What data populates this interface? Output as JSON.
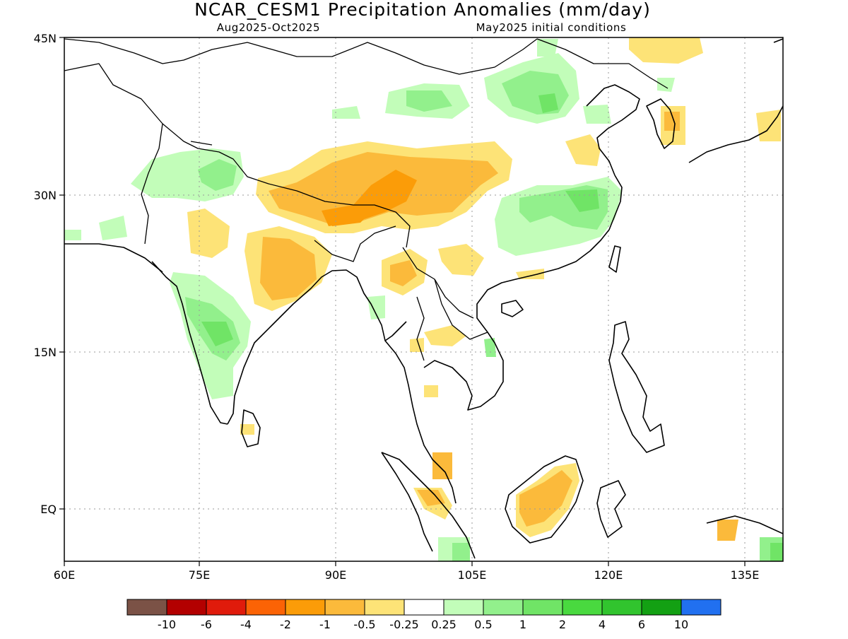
{
  "title": "NCAR_CESM1 Precipitation Anomalies (mm/day)",
  "period": "Aug2025-Oct2025",
  "initial_conditions": "May2025 initial conditions",
  "lat_labels": [
    "45N",
    "30N",
    "15N",
    "EQ"
  ],
  "lon_labels": [
    "60E",
    "75E",
    "90E",
    "105E",
    "120E",
    "135E"
  ],
  "colorbar": {
    "colors": [
      "#7b5246",
      "#b30000",
      "#e01b0b",
      "#fb6305",
      "#fb9c08",
      "#fbba3b",
      "#fde377",
      "#ffffff",
      "#c2fdb9",
      "#92f08c",
      "#70e466",
      "#49d93f",
      "#31c42e",
      "#13a013",
      "#2170f0"
    ],
    "labels": [
      "-10",
      "-6",
      "-4",
      "-2",
      "-1",
      "-0.5",
      "-0.25",
      "0.25",
      "0.5",
      "1",
      "2",
      "4",
      "6",
      "10"
    ]
  }
}
